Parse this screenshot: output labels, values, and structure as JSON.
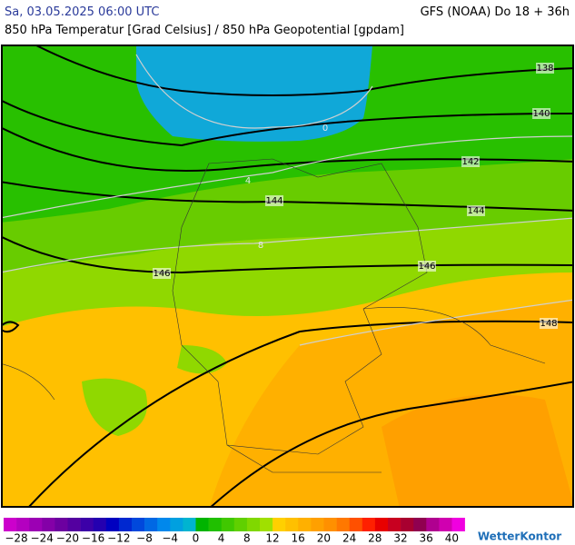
{
  "header": {
    "left": "Sa, 03.05.2025 06:00 UTC",
    "right": "GFS (NOAA) Do 18 + 36h",
    "subtitle": "850 hPa Temperatur [Grad Celsius] / 850 hPa Geopotential [gpdam]"
  },
  "map": {
    "contour_labels": [
      "138",
      "140",
      "142",
      "144",
      "144",
      "146",
      "146",
      "148"
    ],
    "isotherm_labels": [
      "0",
      "4",
      "8"
    ]
  },
  "colorbar": {
    "colors": [
      "#cc00cc",
      "#b400c0",
      "#9c00b4",
      "#8400a8",
      "#6c00a0",
      "#5400a0",
      "#3c00a8",
      "#2400b0",
      "#0000c0",
      "#0028d0",
      "#0048dc",
      "#0068e4",
      "#0088ec",
      "#00a0e0",
      "#00b4d0",
      "#00b400",
      "#20c000",
      "#40c800",
      "#60d000",
      "#80d800",
      "#a0e000",
      "#ffd000",
      "#ffc000",
      "#ffb000",
      "#ffa000",
      "#ff9000",
      "#ff7800",
      "#ff5000",
      "#ff2000",
      "#e80000",
      "#c80020",
      "#a80030",
      "#900050",
      "#b00090",
      "#d000b0",
      "#f000e0"
    ],
    "labels": [
      "−28",
      "−24",
      "−20",
      "−16",
      "−12",
      "−8",
      "−4",
      "0",
      "4",
      "8",
      "12",
      "16",
      "20",
      "24",
      "28",
      "32",
      "36",
      "40"
    ]
  },
  "brand": "WetterKontor"
}
